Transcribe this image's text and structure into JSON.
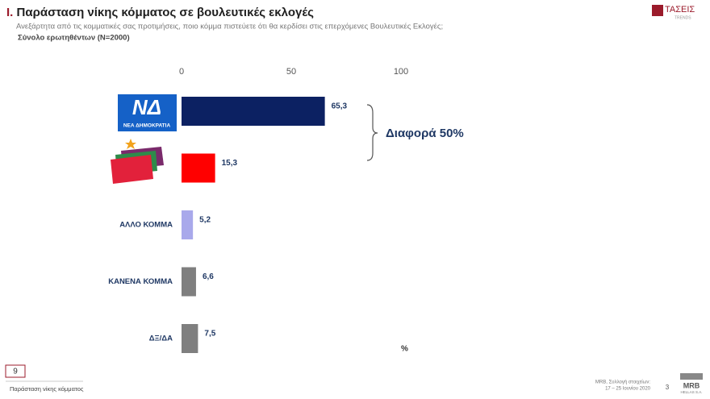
{
  "chart_data": {
    "type": "hbar",
    "title_number": "Ι.",
    "title": "Παράσταση νίκης κόμματος σε βουλευτικές εκλογές",
    "subtitle": "Ανεξάρτητα από τις κομματικές σας προτιμήσεις, ποιο κόμμα πιστεύετε ότι θα κερδίσει στις επερχόμενες Βουλευτικές Εκλογές;",
    "sample_note": "Σύνολο ερωτηθέντων (N=2000)",
    "categories": [
      null,
      null,
      "ΑΛΛΟ ΚΟΜΜΑ",
      "ΚΑΝΕΝΑ ΚΟΜΜΑ",
      "ΔΞ/ΔΑ"
    ],
    "values": [
      65.3,
      15.3,
      5.2,
      6.6,
      7.5
    ],
    "value_labels": [
      "65,3",
      "15,3",
      "5,2",
      "6,6",
      "7,5"
    ],
    "colors": [
      "#0c2162",
      "#ff0000",
      "#a9a9eb",
      "#7f7f7f",
      "#7f7f7f"
    ],
    "xlim": [
      0,
      100
    ],
    "xticks": [
      0,
      50,
      100
    ],
    "unit": "%",
    "annotation": "Διαφορά 50%",
    "logo_nd": {
      "mark": "ΝΔ",
      "name": "ΝΕΑ ΔΗΜΟΚΡΑΤΙΑ"
    }
  },
  "header": {
    "brand": "ΤΑΣΕΙΣ",
    "brand_sub": "TRENDS"
  },
  "footer": {
    "slide_box": "9",
    "section": "Παράσταση νίκης κόμματος",
    "source": "MRB, Συλλογή στοιχείων:",
    "dates": "17 – 25 Ιουνίου 2020",
    "page": "3",
    "company": "MRB",
    "company_sub": "HELLAS S.A."
  }
}
